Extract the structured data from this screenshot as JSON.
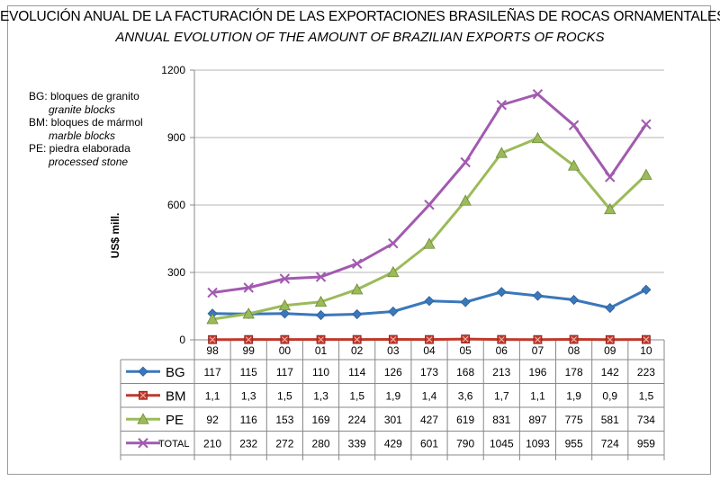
{
  "chart_data": {
    "type": "line",
    "title": "EVOLUCIÓN ANUAL DE LA FACTURACIÓN DE LAS EXPORTACIONES BRASILEÑAS DE ROCAS ORNAMENTALES",
    "subtitle": "ANNUAL EVOLUTION OF THE AMOUNT OF BRAZILIAN EXPORTS OF ROCKS",
    "xlabel": "",
    "ylabel": "US$ mill.",
    "ylim": [
      0,
      1200
    ],
    "yticks": [
      "0",
      "300",
      "600",
      "900",
      "1200"
    ],
    "grid": true,
    "categories": [
      "98",
      "99",
      "00",
      "01",
      "02",
      "03",
      "04",
      "05",
      "06",
      "07",
      "08",
      "09",
      "10"
    ],
    "series": [
      {
        "name": "BG",
        "color": "#3a78bb",
        "marker": "diamond",
        "values": [
          117,
          115,
          117,
          110,
          114,
          126,
          173,
          168,
          213,
          196,
          178,
          142,
          223
        ],
        "labels": [
          "117",
          "115",
          "117",
          "110",
          "114",
          "126",
          "173",
          "168",
          "213",
          "196",
          "178",
          "142",
          "223"
        ]
      },
      {
        "name": "BM",
        "color": "#c0392b",
        "marker": "square",
        "values": [
          1.1,
          1.3,
          1.5,
          1.3,
          1.5,
          1.9,
          1.4,
          3.6,
          1.7,
          1.1,
          1.9,
          0.9,
          1.5
        ],
        "labels": [
          "1,1",
          "1,3",
          "1,5",
          "1,3",
          "1,5",
          "1,9",
          "1,4",
          "3,6",
          "1,7",
          "1,1",
          "1,9",
          "0,9",
          "1,5"
        ]
      },
      {
        "name": "PE",
        "color": "#9bbb59",
        "marker": "triangle",
        "values": [
          92,
          116,
          153,
          169,
          224,
          301,
          427,
          619,
          831,
          897,
          775,
          581,
          734
        ],
        "labels": [
          "92",
          "116",
          "153",
          "169",
          "224",
          "301",
          "427",
          "619",
          "831",
          "897",
          "775",
          "581",
          "734"
        ]
      },
      {
        "name": "TOTAL",
        "color": "#a25ab0",
        "marker": "x",
        "values": [
          210,
          232,
          272,
          280,
          339,
          429,
          601,
          790,
          1045,
          1093,
          955,
          724,
          959
        ],
        "labels": [
          "210",
          "232",
          "272",
          "280",
          "339",
          "429",
          "601",
          "790",
          "1045",
          "1093",
          "955",
          "724",
          "959"
        ]
      }
    ]
  },
  "legend_note": [
    {
      "es": "BG: bloques de granito",
      "en": "granite blocks"
    },
    {
      "es": "BM: bloques de mármol",
      "en": "marble blocks"
    },
    {
      "es": "PE: piedra elaborada",
      "en": "processed stone"
    }
  ]
}
